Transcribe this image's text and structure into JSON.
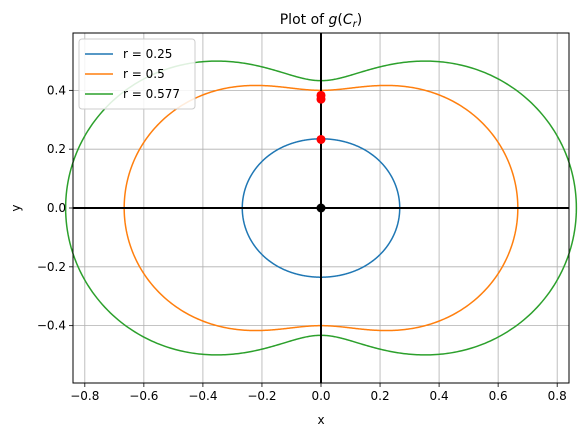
{
  "chart_data": {
    "type": "line",
    "title": "Plot of g(C_r)",
    "title_parts": {
      "prefix": "Plot of ",
      "g": "g",
      "open": "(",
      "C": "C",
      "sub": "r",
      "close": ")"
    },
    "xlabel": "x",
    "ylabel": "y",
    "xlim": [
      -0.84,
      0.84
    ],
    "ylim": [
      -0.595,
      0.595
    ],
    "x_ticks": [
      -0.8,
      -0.6,
      -0.4,
      -0.2,
      0.0,
      0.2,
      0.4,
      0.6,
      0.8
    ],
    "x_tick_labels": [
      "−0.8",
      "−0.6",
      "−0.4",
      "−0.2",
      "0.0",
      "0.2",
      "0.4",
      "0.6",
      "0.8"
    ],
    "y_ticks": [
      -0.4,
      -0.2,
      0.0,
      0.2,
      0.4
    ],
    "y_tick_labels": [
      "−0.4",
      "−0.2",
      "0.0",
      "0.2",
      "0.4"
    ],
    "grid": true,
    "legend_position": "top-left",
    "series": [
      {
        "name": "r = 0.25",
        "r": 0.25,
        "color": "#1f77b4"
      },
      {
        "name": "r = 0.5",
        "r": 0.5,
        "color": "#ff7f0e"
      },
      {
        "name": "r = 0.577",
        "r": 0.577,
        "color": "#2ca02c"
      }
    ],
    "markers": [
      {
        "x": 0.0,
        "y": 0.0,
        "color": "#000000"
      },
      {
        "x": 0.0,
        "y": 0.233,
        "color": "#ff0000"
      },
      {
        "x": 0.0,
        "y": 0.37,
        "color": "#ff0000"
      },
      {
        "x": 0.0,
        "y": 0.383,
        "color": "#ff0000"
      }
    ]
  }
}
